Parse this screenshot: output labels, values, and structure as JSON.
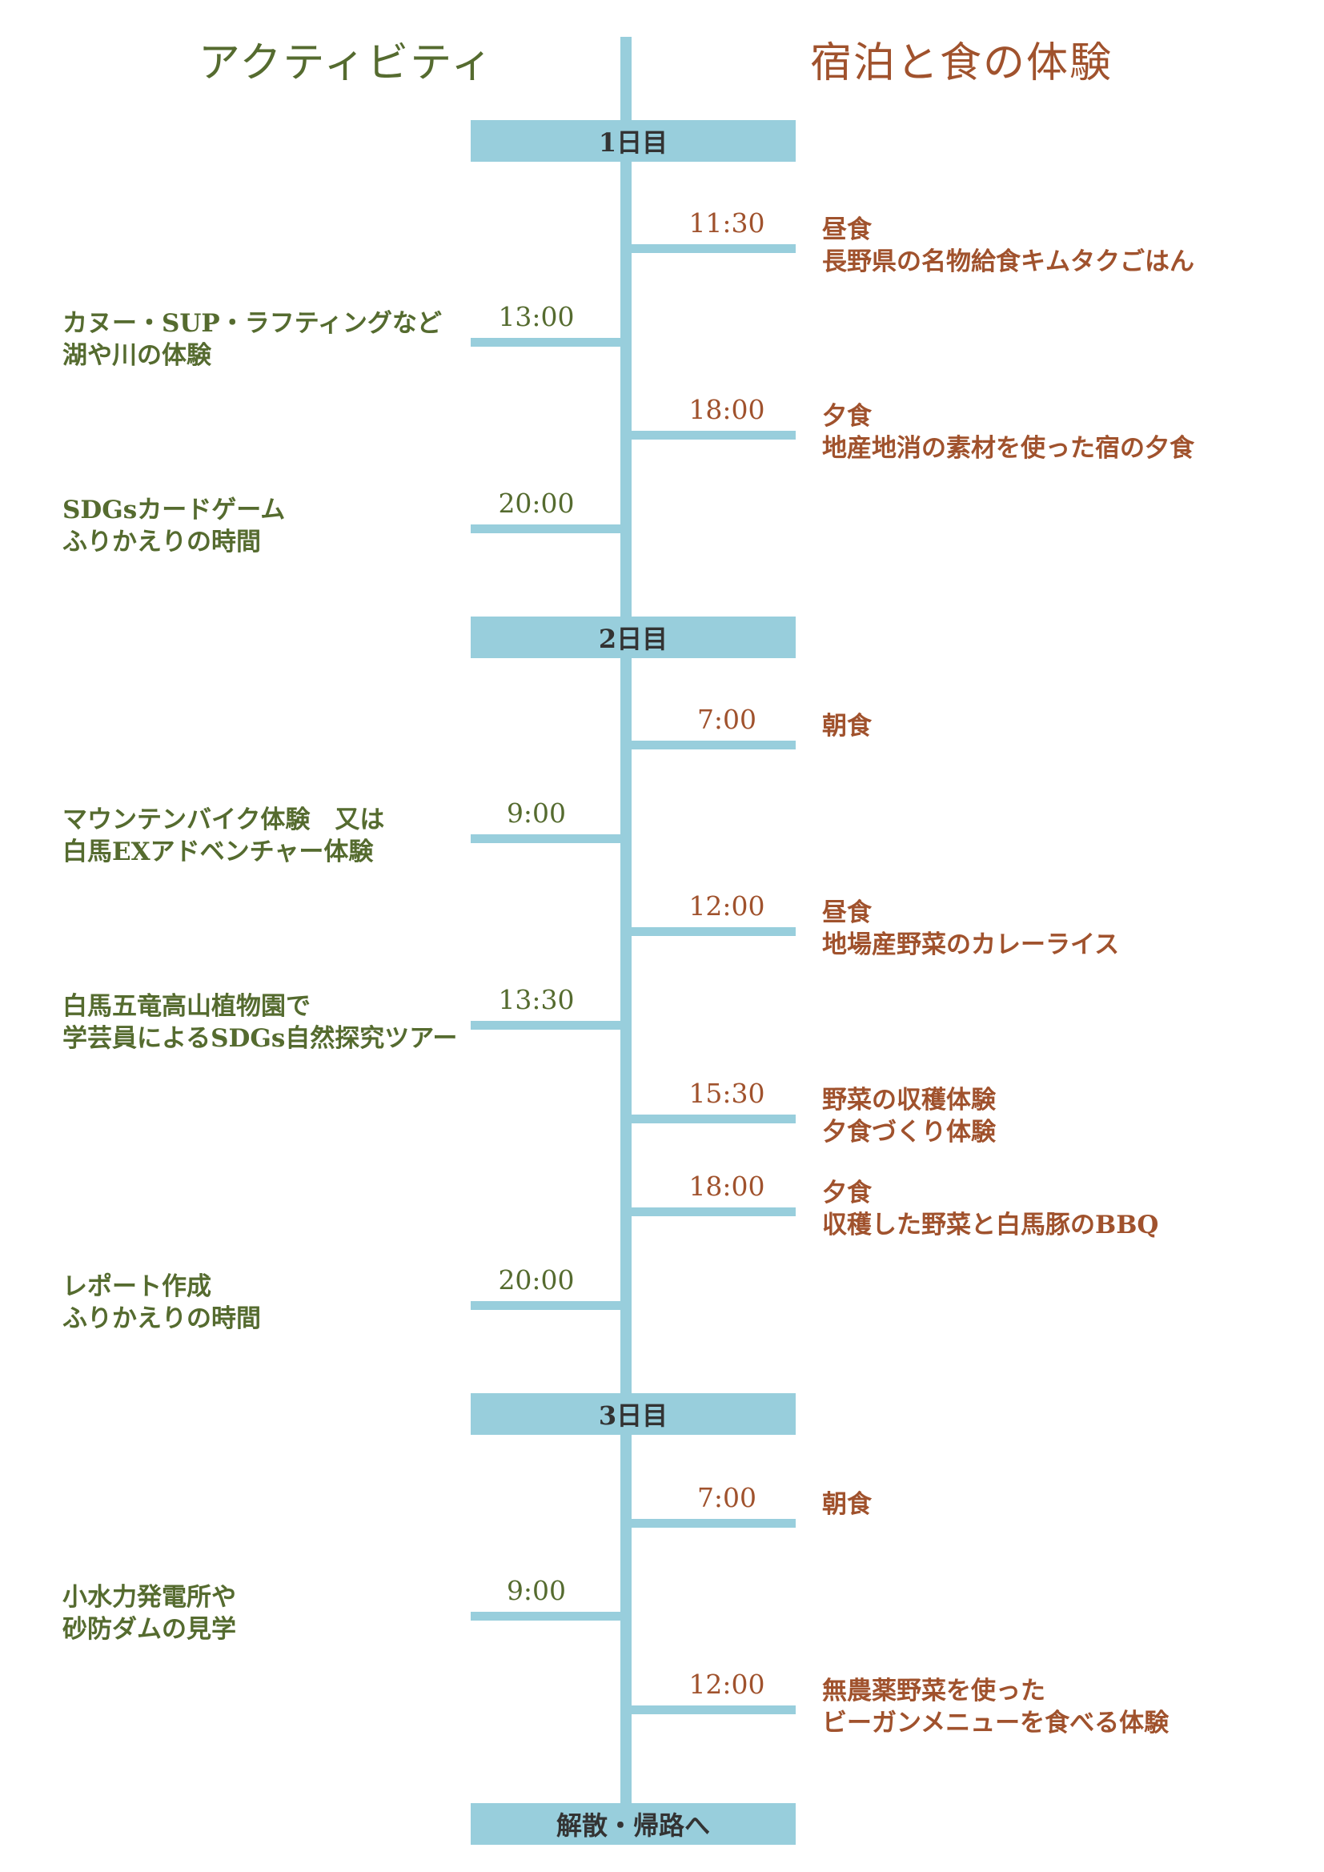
{
  "headings": {
    "left": "アクティビティ",
    "right": "宿泊と食の体験"
  },
  "days": [
    {
      "label": "1日目",
      "events": [
        {
          "side": "right",
          "time": "11:30",
          "lines": [
            "昼食",
            "長野県の名物給食キムタクごはん"
          ]
        },
        {
          "side": "left",
          "time": "13:00",
          "lines": [
            "カヌー・SUP・ラフティングなど",
            "湖や川の体験"
          ]
        },
        {
          "side": "right",
          "time": "18:00",
          "lines": [
            "夕食",
            "地産地消の素材を使った宿の夕食"
          ]
        },
        {
          "side": "left",
          "time": "20:00",
          "lines": [
            "SDGsカードゲーム",
            "ふりかえりの時間"
          ]
        }
      ]
    },
    {
      "label": "2日目",
      "events": [
        {
          "side": "right",
          "time": "7:00",
          "lines": [
            "朝食"
          ]
        },
        {
          "side": "left",
          "time": "9:00",
          "lines": [
            "マウンテンバイク体験　又は",
            "白馬EXアドベンチャー体験"
          ]
        },
        {
          "side": "right",
          "time": "12:00",
          "lines": [
            "昼食",
            "地場産野菜のカレーライス"
          ]
        },
        {
          "side": "left",
          "time": "13:30",
          "lines": [
            "白馬五竜高山植物園で",
            "学芸員によるSDGs自然探究ツアー"
          ]
        },
        {
          "side": "right",
          "time": "15:30",
          "lines": [
            "野菜の収穫体験",
            "夕食づくり体験"
          ]
        },
        {
          "side": "right",
          "time": "18:00",
          "lines": [
            "夕食",
            "収穫した野菜と白馬豚のBBQ"
          ]
        },
        {
          "side": "left",
          "time": "20:00",
          "lines": [
            "レポート作成",
            "ふりかえりの時間"
          ]
        }
      ]
    },
    {
      "label": "3日目",
      "events": [
        {
          "side": "right",
          "time": "7:00",
          "lines": [
            "朝食"
          ]
        },
        {
          "side": "left",
          "time": "9:00",
          "lines": [
            "小水力発電所や",
            "砂防ダムの見学"
          ]
        },
        {
          "side": "right",
          "time": "12:00",
          "lines": [
            "無農薬野菜を使った",
            "ビーガンメニューを食べる体験"
          ]
        }
      ]
    }
  ],
  "end_label": "解散・帰路へ",
  "colors": {
    "spine": "#98cedc",
    "activity": "#556b2f",
    "lodging": "#a0522d",
    "bar_text": "#333333"
  }
}
